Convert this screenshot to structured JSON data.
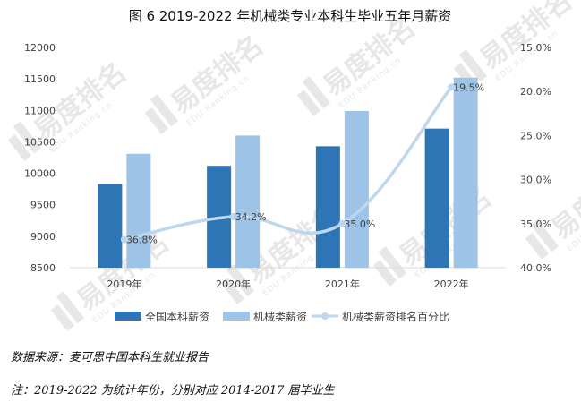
{
  "chart_data": {
    "type": "bar",
    "title": "图 6 2019-2022 年机械类专业本科生毕业五年月薪资",
    "categories": [
      "2019年",
      "2020年",
      "2021年",
      "2022年"
    ],
    "series": [
      {
        "name": "全国本科薪资",
        "type": "bar",
        "axis": "left",
        "color": "#2E75B6",
        "values": [
          9830,
          10120,
          10430,
          10710
        ]
      },
      {
        "name": "机械类薪资",
        "type": "bar",
        "axis": "left",
        "color": "#9DC3E6",
        "values": [
          10310,
          10600,
          10990,
          11520
        ]
      },
      {
        "name": "机械类薪资排名百分比",
        "type": "line",
        "axis": "right",
        "color": "#BDD7EE",
        "values": [
          36.8,
          34.2,
          35.0,
          19.5
        ],
        "labels": [
          "36.8%",
          "34.2%",
          "35.0%",
          "19.5%"
        ]
      }
    ],
    "y_left": {
      "ylim": [
        8500,
        12000
      ],
      "ticks": [
        "8500",
        "9000",
        "9500",
        "10000",
        "10500",
        "11000",
        "11500",
        "12000"
      ]
    },
    "y_right": {
      "ylim": [
        15,
        40
      ],
      "inverted": true,
      "ticks": [
        "15.0%",
        "20.0%",
        "25.0%",
        "30.0%",
        "35.0%",
        "40.0%"
      ]
    },
    "legend_position": "bottom",
    "grid": false
  },
  "notes": {
    "source": "数据来源：麦可思中国本科生就业报告",
    "footnote": "注：2019-2022 为统计年份，分别对应 2014-2017 届毕业生"
  },
  "watermark": {
    "text": "易度排名",
    "subtext": "EDU Ranking.cn",
    "color": "#E7E7E7"
  }
}
